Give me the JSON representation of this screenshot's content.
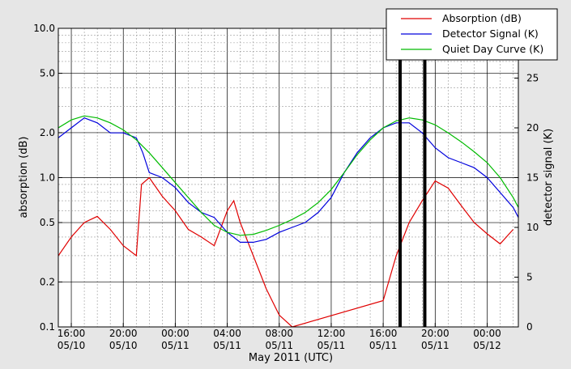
{
  "chart_data": {
    "type": "line",
    "xlabel": "May 2011 (UTC)",
    "ylabel_left": "absorption (dB)",
    "ylabel_right": "detector signal (K)",
    "x_tick_labels": [
      {
        "time": "16:00",
        "date": "05/10",
        "hour": 16
      },
      {
        "time": "20:00",
        "date": "05/10",
        "hour": 20
      },
      {
        "time": "00:00",
        "date": "05/11",
        "hour": 24
      },
      {
        "time": "04:00",
        "date": "05/11",
        "hour": 28
      },
      {
        "time": "08:00",
        "date": "05/11",
        "hour": 32
      },
      {
        "time": "12:00",
        "date": "05/11",
        "hour": 36
      },
      {
        "time": "16:00",
        "date": "05/11",
        "hour": 40
      },
      {
        "time": "20:00",
        "date": "05/11",
        "hour": 44
      },
      {
        "time": "00:00",
        "date": "05/12",
        "hour": 48
      }
    ],
    "xlim_hours": [
      15,
      50.4
    ],
    "y_left": {
      "scale": "log",
      "lim": [
        0.1,
        10.0
      ],
      "ticks": [
        {
          "v": 0.1,
          "label": "0.1"
        },
        {
          "v": 0.2,
          "label": "0.2"
        },
        {
          "v": 0.5,
          "label": "0.5"
        },
        {
          "v": 1.0,
          "label": "1.0"
        },
        {
          "v": 2.0,
          "label": "2.0"
        },
        {
          "v": 5.0,
          "label": "5.0"
        },
        {
          "v": 10.0,
          "label": "10.0"
        }
      ]
    },
    "y_right": {
      "scale": "linear",
      "lim": [
        0,
        30
      ],
      "ticks": [
        0,
        5,
        10,
        15,
        20,
        25
      ]
    },
    "grid": true,
    "legend": "top-right",
    "series": [
      {
        "name": "Absorption (dB)",
        "axis": "left",
        "color": "#e00000",
        "x": [
          15.0,
          16.0,
          17.0,
          18.0,
          19.0,
          20.0,
          21.0,
          21.4,
          22.0,
          23.0,
          24.0,
          25.0,
          26.0,
          27.0,
          28.0,
          28.5,
          29.0,
          30.0,
          31.0,
          32.0,
          33.0,
          40.0,
          41.0,
          42.0,
          43.0,
          44.0,
          45.0,
          46.0,
          47.0,
          48.0,
          49.0,
          50.0
        ],
        "y": [
          0.3,
          0.4,
          0.5,
          0.55,
          0.45,
          0.35,
          0.3,
          0.9,
          1.0,
          0.75,
          0.6,
          0.45,
          0.4,
          0.35,
          0.6,
          0.7,
          0.5,
          0.3,
          0.18,
          0.12,
          0.1,
          0.15,
          0.3,
          0.5,
          0.7,
          0.95,
          0.85,
          0.65,
          0.5,
          0.42,
          0.36,
          0.45
        ]
      },
      {
        "name": "Detector Signal (K)",
        "axis": "right",
        "color": "#0000dd",
        "x": [
          15.0,
          16.0,
          17.0,
          18.0,
          19.0,
          20.0,
          21.0,
          21.5,
          22.0,
          23.0,
          24.0,
          25.0,
          26.0,
          27.0,
          28.0,
          29.0,
          30.0,
          31.0,
          32.0,
          33.0,
          34.0,
          35.0,
          36.0,
          37.0,
          38.0,
          39.0,
          40.0,
          41.0,
          42.0,
          43.0,
          44.0,
          45.0,
          46.0,
          47.0,
          48.0,
          49.0,
          50.0,
          50.4
        ],
        "y": [
          19.0,
          20.0,
          21.0,
          20.5,
          19.5,
          19.5,
          19.0,
          17.5,
          15.5,
          15.0,
          14.0,
          12.5,
          11.5,
          11.0,
          9.5,
          8.5,
          8.5,
          8.8,
          9.5,
          10.0,
          10.5,
          11.5,
          13.0,
          15.5,
          17.5,
          19.0,
          20.0,
          20.5,
          20.5,
          19.5,
          18.0,
          17.0,
          16.5,
          16.0,
          15.0,
          13.5,
          12.0,
          11.0
        ]
      },
      {
        "name": "Quiet Day Curve (K)",
        "axis": "right",
        "color": "#00bb00",
        "x": [
          15.0,
          16.0,
          17.0,
          18.0,
          19.0,
          20.0,
          21.0,
          22.0,
          23.0,
          24.0,
          25.0,
          26.0,
          27.0,
          28.0,
          29.0,
          30.0,
          31.0,
          32.0,
          33.0,
          34.0,
          35.0,
          36.0,
          37.0,
          38.0,
          39.0,
          40.0,
          41.0,
          42.0,
          43.0,
          44.0,
          45.0,
          46.0,
          47.0,
          48.0,
          49.0,
          50.0,
          50.4
        ],
        "y": [
          20.0,
          20.8,
          21.2,
          21.0,
          20.5,
          19.8,
          18.8,
          17.5,
          16.0,
          14.5,
          13.0,
          11.5,
          10.2,
          9.5,
          9.2,
          9.3,
          9.7,
          10.2,
          10.8,
          11.5,
          12.5,
          13.8,
          15.5,
          17.3,
          18.8,
          20.0,
          20.7,
          21.0,
          20.8,
          20.3,
          19.5,
          18.6,
          17.6,
          16.5,
          15.0,
          13.0,
          12.0
        ]
      }
    ],
    "markers": [
      {
        "hour": 41.3
      },
      {
        "hour": 43.2
      }
    ]
  }
}
